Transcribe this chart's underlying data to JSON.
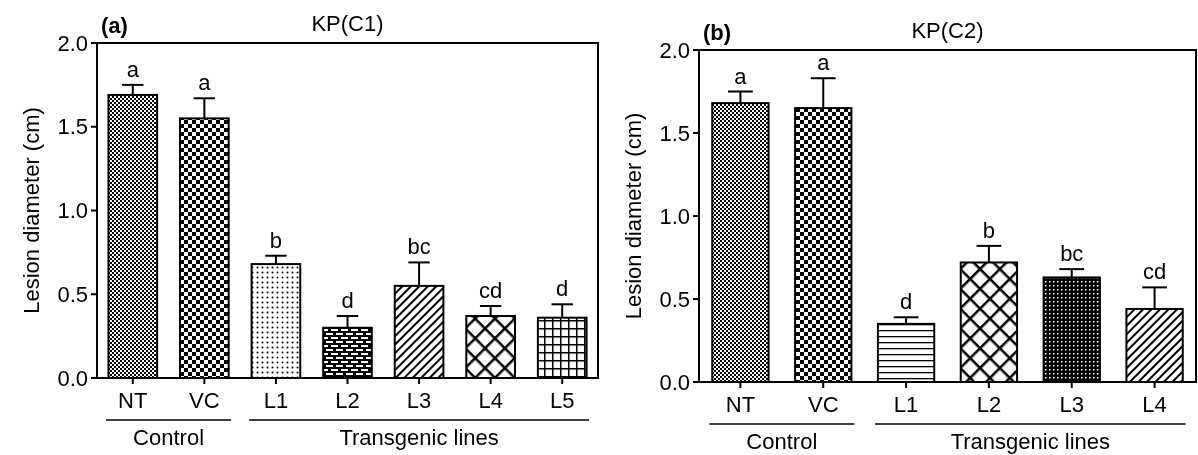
{
  "chart_data": [
    {
      "type": "bar",
      "title": "KP(C1)",
      "ylabel": "Lesion diameter (cm)",
      "categories": [
        "NT",
        "VC",
        "L1",
        "L2",
        "L3",
        "L4",
        "L5"
      ],
      "values": [
        1.69,
        1.55,
        0.68,
        0.3,
        0.55,
        0.37,
        0.36
      ],
      "errors": [
        [
          1.69,
          1.75
        ],
        [
          1.55,
          1.67
        ],
        [
          0.68,
          0.73
        ],
        [
          0.3,
          0.37
        ],
        [
          0.55,
          0.69
        ],
        [
          0.37,
          0.43
        ],
        [
          0.36,
          0.44
        ]
      ],
      "colors": [
        "#000000",
        "#000000",
        "#000000",
        "#000000",
        "#000000",
        "#000000",
        "#000000"
      ],
      "ylim": [
        0,
        2
      ],
      "yticks": [
        {
          "value": 0,
          "label": "0.0"
        },
        {
          "value": 0.5,
          "label": "0.5"
        },
        {
          "value": 1,
          "label": "1.0"
        },
        {
          "value": 1.5,
          "label": "1.5"
        },
        {
          "value": 2,
          "label": "2.0"
        }
      ],
      "annotations": [
        "(a)",
        "Control",
        "Transgenic lines",
        {
          "text": "a",
          "x": "NT",
          "y": 1.75
        },
        {
          "text": "a",
          "x": "VC",
          "y": 1.67
        },
        {
          "text": "b",
          "x": "L1",
          "y": 0.73
        },
        {
          "text": "d",
          "x": "L2",
          "y": 0.37
        },
        {
          "text": "bc",
          "x": "L3",
          "y": 0.69
        },
        {
          "text": "cd",
          "x": "L4",
          "y": 0.43
        },
        {
          "text": "d",
          "x": "L5",
          "y": 0.44
        }
      ]
    },
    {
      "type": "bar",
      "title": "KP(C2)",
      "ylabel": "Lesion diameter (cm)",
      "categories": [
        "NT",
        "VC",
        "L1",
        "L2",
        "L3",
        "L4"
      ],
      "values": [
        1.68,
        1.65,
        0.35,
        0.72,
        0.63,
        0.44
      ],
      "errors": [
        [
          1.68,
          1.75
        ],
        [
          1.65,
          1.83
        ],
        [
          0.35,
          0.39
        ],
        [
          0.72,
          0.82
        ],
        [
          0.63,
          0.68
        ],
        [
          0.44,
          0.57
        ]
      ],
      "colors": [
        "#000000",
        "#000000",
        "#000000",
        "#000000",
        "#000000",
        "#000000"
      ],
      "ylim": [
        0,
        2
      ],
      "yticks": [
        {
          "value": 0,
          "label": "0.0"
        },
        {
          "value": 0.5,
          "label": "0.5"
        },
        {
          "value": 1,
          "label": "1.0"
        },
        {
          "value": 1.5,
          "label": "1.5"
        },
        {
          "value": 2,
          "label": "2.0"
        }
      ],
      "annotations": [
        "(b)",
        "Control",
        "Transgenic lines",
        {
          "text": "a",
          "x": "NT",
          "y": 1.75
        },
        {
          "text": "a",
          "x": "VC",
          "y": 1.83
        },
        {
          "text": "d",
          "x": "L1",
          "y": 0.39
        },
        {
          "text": "b",
          "x": "L2",
          "y": 0.82
        },
        {
          "text": "bc",
          "x": "L3",
          "y": 0.68
        },
        {
          "text": "cd",
          "x": "L4",
          "y": 0.57
        }
      ]
    }
  ]
}
